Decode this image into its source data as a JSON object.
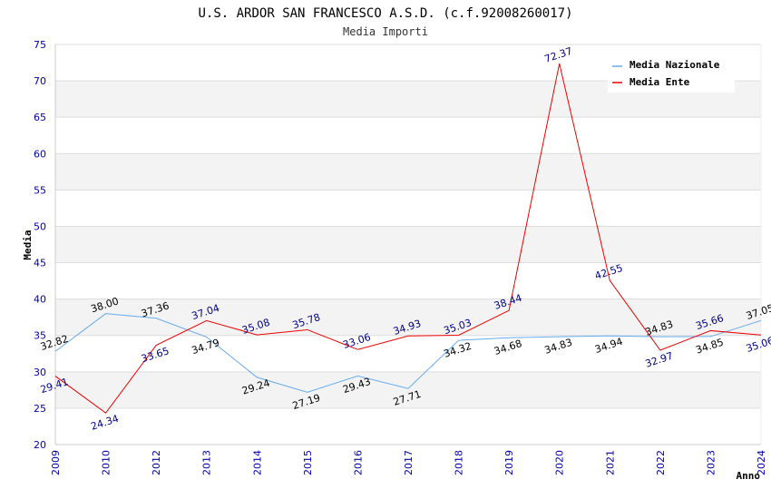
{
  "chart_data": {
    "type": "line",
    "title": "U.S. ARDOR SAN FRANCESCO A.S.D. (c.f.92008260017)",
    "subtitle": "Media Importi",
    "xlabel": "Anno",
    "ylabel": "Media",
    "ylim": [
      20,
      75
    ],
    "yticks": [
      "20",
      "25",
      "30",
      "35",
      "40",
      "45",
      "50",
      "55",
      "60",
      "65",
      "70",
      "75"
    ],
    "categories": [
      "2009",
      "2010",
      "2012",
      "2013",
      "2014",
      "2015",
      "2016",
      "2017",
      "2018",
      "2019",
      "2020",
      "2021",
      "2022",
      "2023",
      "2024"
    ],
    "grid": true,
    "legend_position": "top-right",
    "series": [
      {
        "name": "Media Nazionale",
        "color": "#66aaee",
        "label_color": "#000000",
        "values": [
          32.82,
          38.0,
          37.36,
          34.79,
          29.24,
          27.19,
          29.43,
          27.71,
          34.32,
          34.68,
          34.83,
          34.94,
          34.83,
          34.85,
          37.05
        ],
        "labels": [
          "32.82",
          "38.00",
          "37.36",
          "34.79",
          "29.24",
          "27.19",
          "29.43",
          "27.71",
          "34.32",
          "34.68",
          "34.83",
          "34.94",
          "34.83",
          "34.85",
          "37.05"
        ]
      },
      {
        "name": "Media Ente",
        "color": "#ee0000",
        "label_color": "#000088",
        "values": [
          29.41,
          24.34,
          33.65,
          37.04,
          35.08,
          35.78,
          33.06,
          34.93,
          35.03,
          38.44,
          72.37,
          42.55,
          32.97,
          35.66,
          35.06
        ],
        "labels": [
          "29.41",
          "24.34",
          "33.65",
          "37.04",
          "35.08",
          "35.78",
          "33.06",
          "34.93",
          "35.03",
          "38.44",
          "72.37",
          "42.55",
          "32.97",
          "35.66",
          "35.06"
        ]
      }
    ]
  }
}
